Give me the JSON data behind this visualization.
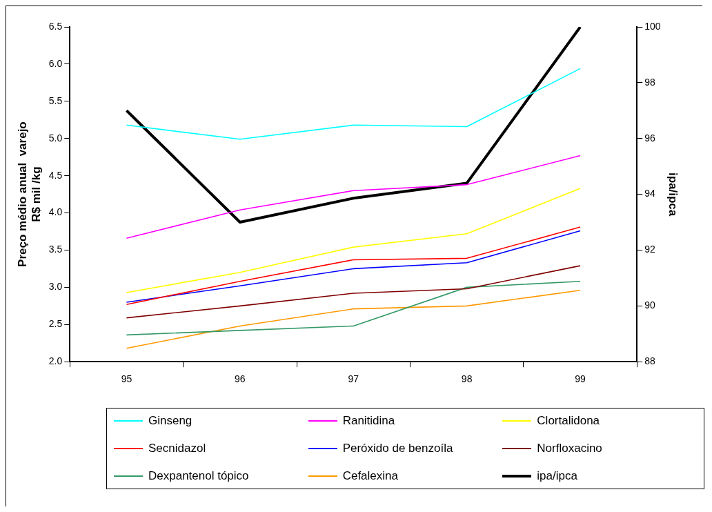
{
  "chart_data": {
    "type": "line",
    "ylabel": "Preço médio anual  varejo\nR$ mil /kg",
    "y2label": "ipa/ipca",
    "categories": [
      "95",
      "96",
      "97",
      "98",
      "99"
    ],
    "ylim": [
      2.0,
      6.5
    ],
    "yticks": [
      {
        "value": 2,
        "label": "2.0"
      },
      {
        "value": 2.5,
        "label": "2.5"
      },
      {
        "value": 3,
        "label": "3.0"
      },
      {
        "value": 3.5,
        "label": "3.5"
      },
      {
        "value": 4,
        "label": "4.0"
      },
      {
        "value": 4.5,
        "label": "4.5"
      },
      {
        "value": 5,
        "label": "5.0"
      },
      {
        "value": 5.5,
        "label": "5.5"
      },
      {
        "value": 6,
        "label": "6.0"
      },
      {
        "value": 6.5,
        "label": "6.5"
      }
    ],
    "y2lim": [
      88,
      100
    ],
    "y2ticks": [
      88,
      90,
      92,
      94,
      96,
      98,
      100
    ],
    "grid": false,
    "legend": "bottom",
    "marker": "none",
    "series": [
      {
        "name": "Ginseng",
        "color": "#00ffff",
        "values": [
          5.18,
          4.99,
          5.18,
          5.16,
          5.94
        ]
      },
      {
        "name": "Ranitidina",
        "color": "#ff00ff",
        "values": [
          3.66,
          4.04,
          4.3,
          4.38,
          4.77
        ]
      },
      {
        "name": "Clortalidona",
        "color": "#ffff00",
        "values": [
          2.93,
          3.2,
          3.54,
          3.72,
          4.33
        ]
      },
      {
        "name": "Secnidazol",
        "color": "#ff0000",
        "values": [
          2.77,
          3.08,
          3.37,
          3.39,
          3.81
        ]
      },
      {
        "name": "Peróxido de benzoíla",
        "color": "#0000ff",
        "values": [
          2.8,
          3.02,
          3.25,
          3.33,
          3.76
        ]
      },
      {
        "name": "Norfloxacino",
        "color": "#800000",
        "values": [
          2.59,
          2.75,
          2.92,
          2.98,
          3.29
        ]
      },
      {
        "name": "Dexpantenol tópico",
        "color": "#339966",
        "values": [
          2.36,
          2.42,
          2.48,
          3.0,
          3.08
        ]
      },
      {
        "name": "Cefalexina",
        "color": "#ff9900",
        "values": [
          2.18,
          2.48,
          2.71,
          2.75,
          2.96
        ]
      },
      {
        "name": "ipa/ipca",
        "color": "#000000",
        "axis": "y2",
        "values": [
          97.0,
          93.0,
          93.86,
          94.4,
          100
        ]
      }
    ]
  }
}
